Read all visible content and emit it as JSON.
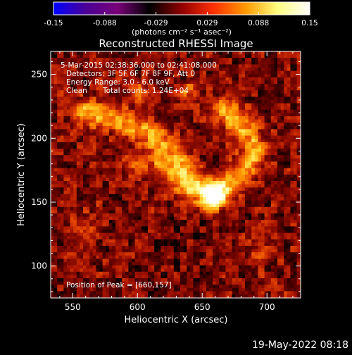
{
  "chart_data": {
    "type": "heatmap",
    "title": "Reconstructed RHESSI Image",
    "xlabel": "Heliocentric X (arcsec)",
    "ylabel": "Heliocentric Y (arcsec)",
    "xlim": [
      533,
      726
    ],
    "ylim": [
      75,
      268
    ],
    "x_ticks": [
      550,
      600,
      650,
      700
    ],
    "y_ticks": [
      100,
      150,
      200,
      250
    ],
    "colorbar": {
      "min": -0.15,
      "max": 0.15,
      "tick_labels": [
        "-0.15",
        "-0.088",
        "-0.029",
        "0.029",
        "0.088",
        "0.15"
      ],
      "unit_label": "(photons cm⁻² s⁻¹ asec⁻²)",
      "colors": [
        "#0000ff",
        "#4b0096",
        "#7a007a",
        "#000000",
        "#900000",
        "#ff3000",
        "#ff9a00",
        "#ffff80",
        "#ffffff"
      ]
    },
    "annotations": {
      "time_range": "5-Mar-2015 02:38:36.000 to 02:41:08.000",
      "detectors": "Detectors: 3F 5F 6F 7F 8F 9F, Att 0",
      "energy_range": "Energy Range: 3.0 - 6.0 keV",
      "method": "Clean",
      "total_counts": "Total counts: 1.24E+04",
      "peak_position": "Position of Peak = [660,157]"
    },
    "peak": {
      "x": 660,
      "y": 157
    },
    "timestamp": "19-May-2022 08:18"
  }
}
